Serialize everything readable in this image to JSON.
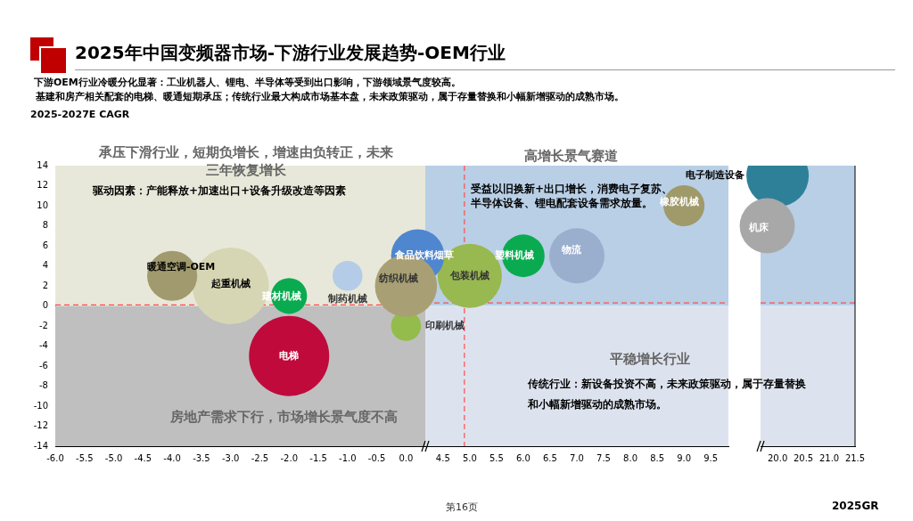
{
  "chart_data": [
    {
      "type": "bubble",
      "title": "2025年中国变频器市场-下游行业发展趋势-OEM行业",
      "subtitle": "下游OEM行业冷暖分化显著：工业机器人、锂电、半导体等受到出口影响，下游领域景气度较高。",
      "ylabel": "2025-2027E CAGR",
      "xlim": [
        -6,
        0.33
      ],
      "xticks": [
        {
          "value": -6,
          "label": "-6.0"
        },
        -5.5,
        {
          "value": -5,
          "label": "-5.0"
        },
        -4.5,
        {
          "value": -4,
          "label": "-4.0"
        },
        -3.5,
        {
          "value": -3,
          "label": "-3.0"
        },
        -2.5,
        {
          "value": -2,
          "label": "-2.0"
        },
        -1.5,
        {
          "value": -1,
          "label": "-1.0"
        },
        -0.5,
        {
          "value": 0,
          "label": "0.0"
        }
      ],
      "ylim": [
        -14,
        14
      ],
      "yticks": [
        -14,
        -12,
        -10,
        -8,
        -6,
        -4,
        -2,
        0,
        2,
        4,
        6,
        8,
        10,
        12,
        14
      ],
      "bands": [
        {
          "axis": "y",
          "from": 0,
          "to": 14,
          "color": "#e8e8da"
        },
        {
          "axis": "y",
          "from": -14,
          "to": 0,
          "color": "#bfbfbf"
        }
      ],
      "ref_lines": [
        {
          "axis": "y",
          "value": 0.1,
          "color": "#ff4d4d",
          "line_style": "dashed"
        }
      ],
      "series": [
        {
          "name": "暖通空调-OEM",
          "color": "#a09a6e",
          "x": [
            -4
          ],
          "values": [
            3
          ],
          "sizes": [
            0.39
          ]
        },
        {
          "name": "起重机械",
          "color": "#d6d6b4",
          "x": [
            -3
          ],
          "values": [
            2
          ],
          "sizes": [
            0.91
          ]
        },
        {
          "name": "建材机械",
          "color": "#0aab50",
          "x": [
            -2
          ],
          "values": [
            1
          ],
          "sizes": [
            0.2
          ]
        },
        {
          "name": "电梯",
          "color": "#c00a3c",
          "x": [
            -2
          ],
          "values": [
            -5
          ],
          "sizes": [
            1
          ]
        },
        {
          "name": "制药机械",
          "color": "#b4cce8",
          "x": [
            -1
          ],
          "values": [
            3
          ],
          "sizes": [
            0.14
          ]
        },
        {
          "name": "纺织机械",
          "color": "#a8a074",
          "x": [
            0
          ],
          "values": [
            2
          ],
          "sizes": [
            0.6
          ]
        },
        {
          "name": "印刷机械",
          "color": "#94bc4c",
          "x": [
            0
          ],
          "values": [
            -2
          ],
          "sizes": [
            0.14
          ]
        },
        {
          "name": "食品饮料烟草",
          "color": "#4f86d0",
          "x": [
            0.2
          ],
          "values": [
            5
          ],
          "sizes": [
            0.44
          ]
        }
      ],
      "annotations": [
        "基建和房产相关配套的电梯、暖通短期承压；传统行业最大构成市场基本盘，未来政策驱动，属于存量替换和小幅新增驱动的成熟市场。",
        "承压下滑行业，短期负增长，增速由负转正，未来三年恢复增长",
        "驱动因素：产能释放+加速出口+设备升级改造等因素",
        "房地产需求下行，市场增长景气度不高",
        "第16页"
      ]
    },
    {
      "type": "bubble",
      "xlim": [
        4.17,
        9.83
      ],
      "xticks": [
        4.5,
        {
          "value": 5,
          "label": "5.0"
        },
        5.5,
        {
          "value": 6,
          "label": "6.0"
        },
        6.5,
        {
          "value": 7,
          "label": "7.0"
        },
        7.5,
        {
          "value": 8,
          "label": "8.0"
        },
        8.5,
        {
          "value": 9,
          "label": "9.0"
        },
        9.5
      ],
      "ylim": [
        -14,
        14
      ],
      "tick_labels": "x",
      "bands": [
        {
          "axis": "y",
          "from": 0,
          "to": 14,
          "color": "#b8cfe6"
        },
        {
          "axis": "y",
          "from": -14,
          "to": 0,
          "color": "#dde3ee"
        }
      ],
      "ref_lines": [
        {
          "axis": "y",
          "value": 0.3,
          "color": "#ff4d4d",
          "line_style": "dashed"
        },
        {
          "axis": "x",
          "value": 4.9,
          "color": "#ff4d4d",
          "line_style": "dashed"
        }
      ],
      "series": [
        {
          "name": "包装机械",
          "color": "#98b850",
          "x": [
            5
          ],
          "values": [
            3
          ],
          "sizes": [
            1
          ]
        },
        {
          "name": "塑料机械",
          "color": "#0aab50",
          "x": [
            6
          ],
          "values": [
            5
          ],
          "sizes": [
            0.44
          ]
        },
        {
          "name": "物流",
          "color": "#9aaece",
          "x": [
            7
          ],
          "values": [
            5
          ],
          "sizes": [
            0.74
          ]
        },
        {
          "name": "橡胶机械",
          "color": "#a09a6a",
          "x": [
            9
          ],
          "values": [
            10
          ],
          "sizes": [
            0.41
          ]
        }
      ],
      "annotations": [
        "高增长景气赛道",
        "受益以旧换新+出口增长，消费电子复苏、半导体设备、锂电配套设备需求放量。",
        "平稳增长行业",
        "传统行业：新设备投资不高，未来政策驱动，属于存量替换和小幅新增驱动的成熟市场。"
      ]
    },
    {
      "type": "bubble",
      "xlabel": "2025GR",
      "xlim": [
        19.67,
        21.5
      ],
      "xticks": [
        {
          "value": 20,
          "label": "20.0"
        },
        20.5,
        {
          "value": 21,
          "label": "21.0"
        },
        21.5
      ],
      "ylim": [
        -14,
        14
      ],
      "tick_labels": "x",
      "bands": [
        {
          "axis": "y",
          "from": 0,
          "to": 14,
          "color": "#b8cfe6"
        },
        {
          "axis": "y",
          "from": -14,
          "to": 0,
          "color": "#dde3ee"
        }
      ],
      "ref_lines": [
        {
          "axis": "y",
          "value": 0.3,
          "color": "#ff4d4d",
          "line_style": "dashed"
        }
      ],
      "series": [
        {
          "name": "机床",
          "color": "#a8a8a8",
          "x": [
            19.8
          ],
          "values": [
            8
          ],
          "sizes": [
            0.78
          ]
        },
        {
          "name": "电子制造设备",
          "color": "#2e8098",
          "x": [
            20
          ],
          "values": [
            13
          ],
          "sizes": [
            1
          ]
        }
      ]
    }
  ]
}
